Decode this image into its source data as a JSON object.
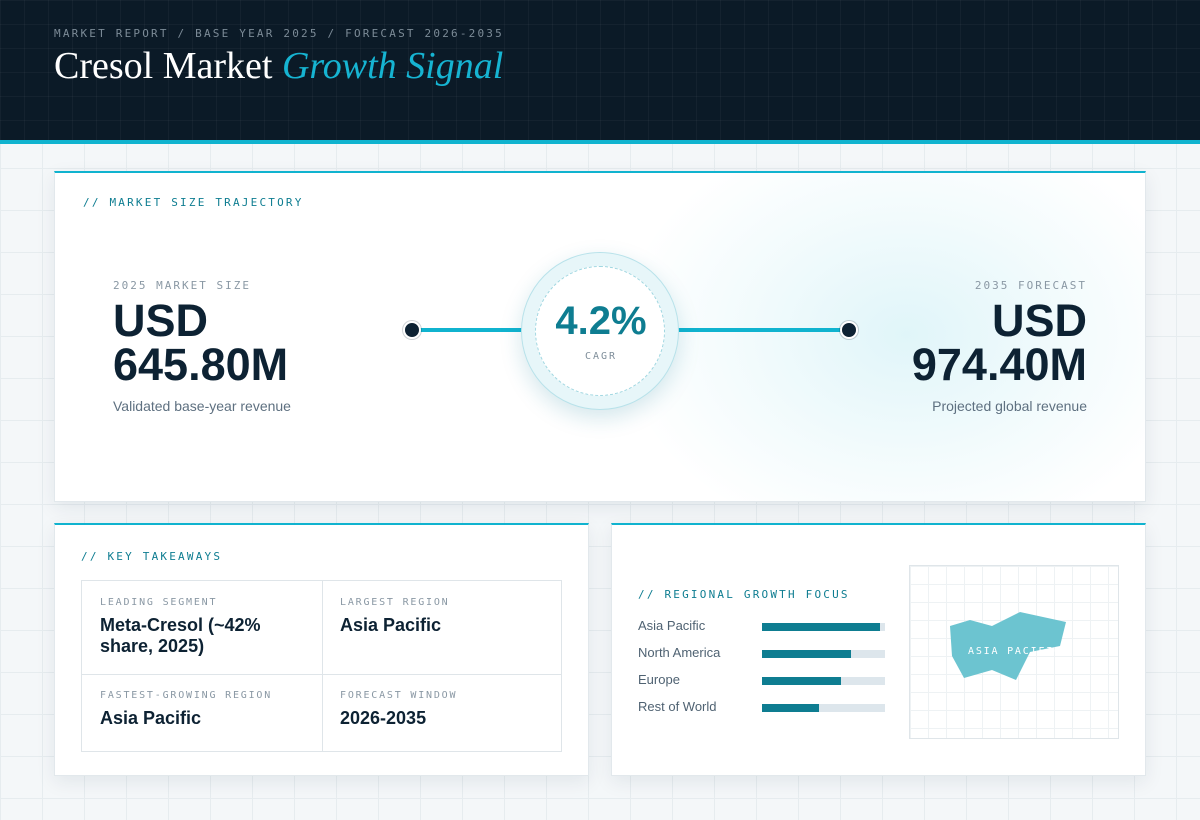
{
  "header": {
    "breadcrumb": "MARKET REPORT / BASE YEAR 2025 / FORECAST 2026-2035",
    "title_main": "Cresol Market",
    "title_accent": "Growth Signal"
  },
  "trajectory": {
    "section_label": "// MARKET SIZE TRAJECTORY",
    "base": {
      "label": "2025 MARKET SIZE",
      "value_line1": "USD",
      "value_line2": "645.80M",
      "description": "Validated base-year revenue"
    },
    "cagr": {
      "value": "4.2%",
      "label": "CAGR"
    },
    "forecast": {
      "label": "2035 FORECAST",
      "value_line1": "USD",
      "value_line2": "974.40M",
      "description": "Projected global revenue"
    }
  },
  "takeaways": {
    "section_label": "// KEY TAKEAWAYS",
    "items": [
      {
        "label": "LEADING SEGMENT",
        "value": "Meta-Cresol (~42% share, 2025)"
      },
      {
        "label": "LARGEST REGION",
        "value": "Asia Pacific"
      },
      {
        "label": "FASTEST-GROWING REGION",
        "value": "Asia Pacific"
      },
      {
        "label": "FORECAST WINDOW",
        "value": "2026-2035"
      }
    ]
  },
  "regional": {
    "section_label": "// REGIONAL GROWTH FOCUS",
    "regions": [
      {
        "name": "Asia Pacific",
        "share": 0.96
      },
      {
        "name": "North America",
        "share": 0.72
      },
      {
        "name": "Europe",
        "share": 0.64
      },
      {
        "name": "Rest of World",
        "share": 0.46
      }
    ],
    "map_label": "ASIA PACIFIC"
  },
  "colors": {
    "accent": "#10b3cf",
    "accent_dark": "#0e7d91",
    "navy": "#0b1a27",
    "map_fill": "#6cc4d0"
  }
}
